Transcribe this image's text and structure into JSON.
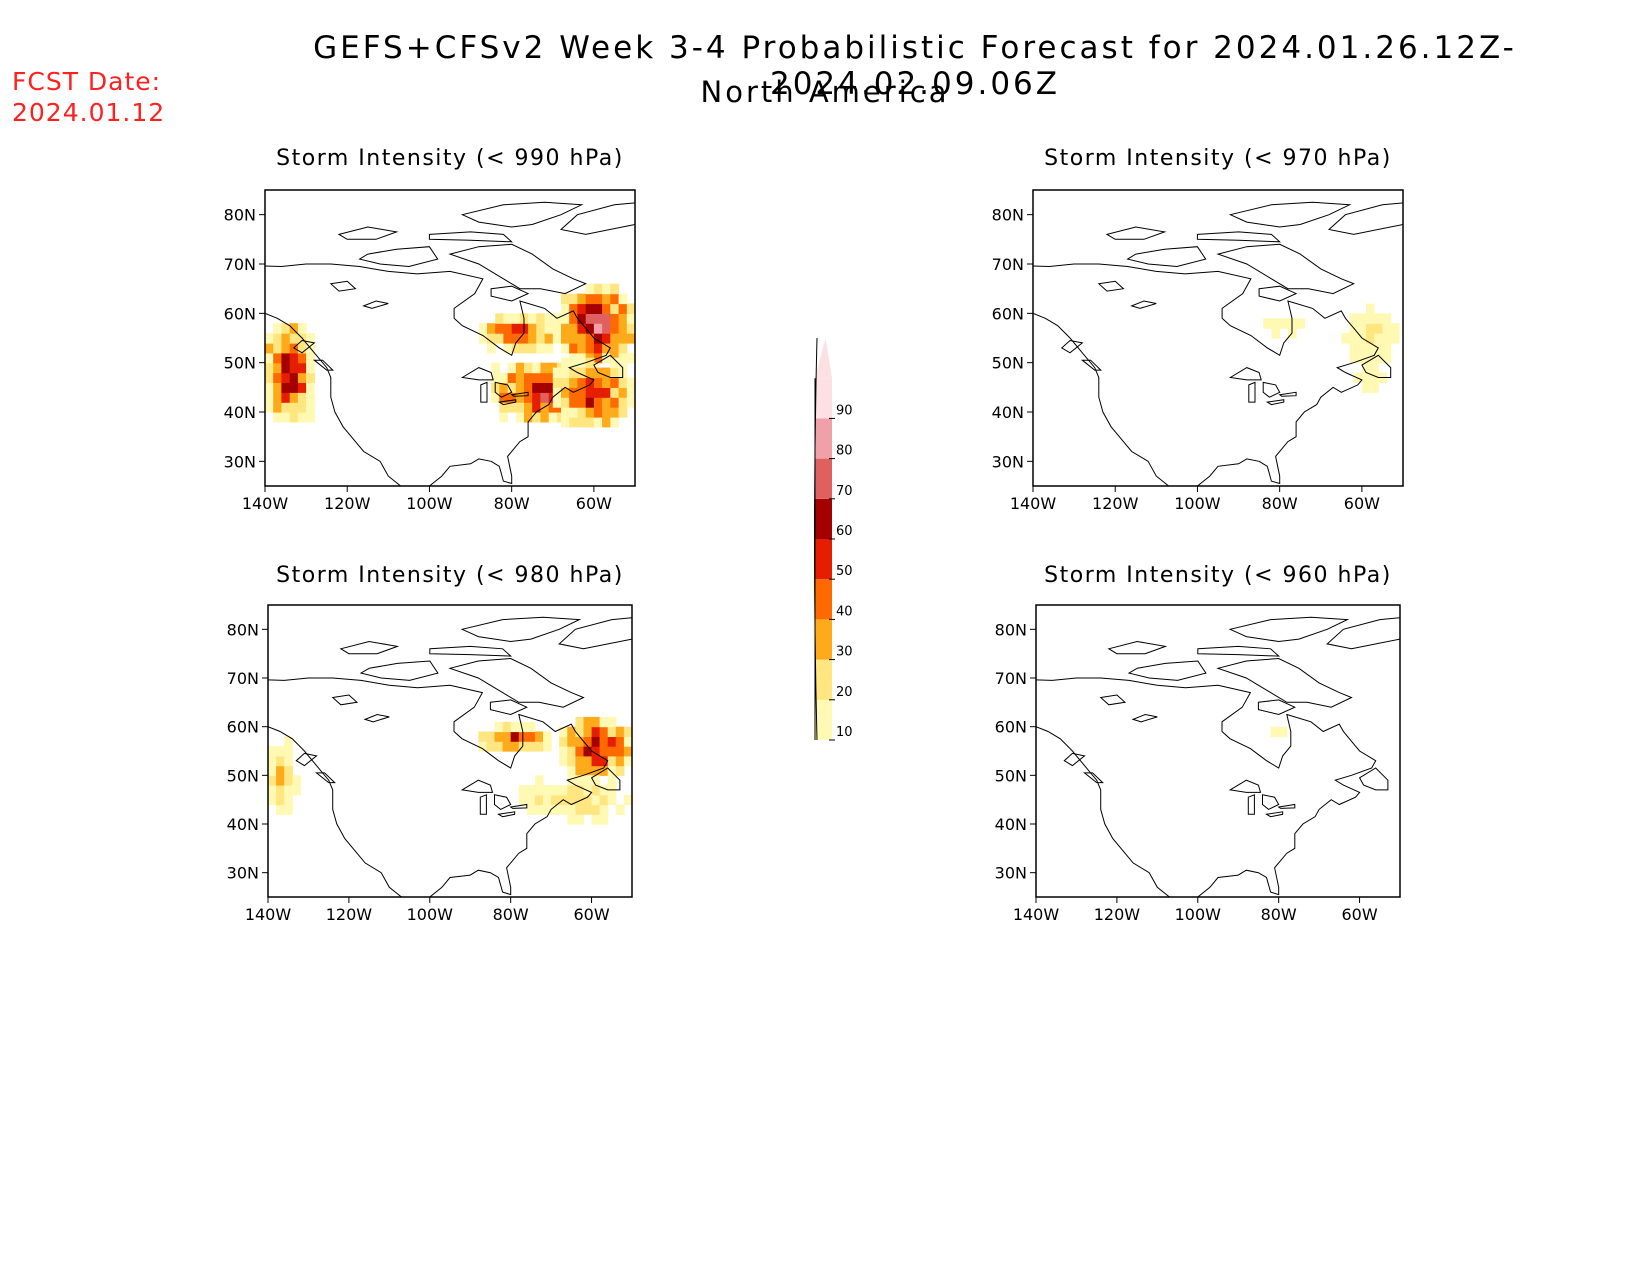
{
  "header": {
    "title": "GEFS+CFSv2 Week 3-4 Probabilistic Forecast for 2024.01.26.12Z-2024.02.09.06Z",
    "subtitle": "North America",
    "fcst_date_label": "FCST Date:",
    "fcst_date_value": "2024.01.12"
  },
  "map": {
    "lon_ticks": [
      "140W",
      "120W",
      "100W",
      "80W",
      "60W"
    ],
    "lat_ticks": [
      "80N",
      "70N",
      "60N",
      "50N",
      "40N",
      "30N"
    ],
    "lon_range": [
      -140,
      -50
    ],
    "lat_range": [
      25,
      85
    ]
  },
  "panels": [
    {
      "title": "Storm Intensity (< 990 hPa)",
      "areas": [
        {
          "name": "pacific-coast",
          "lon": [
            -140,
            -128
          ],
          "lat": [
            38,
            58
          ],
          "peak": 75
        },
        {
          "name": "hudson-bay-south",
          "lon": [
            -88,
            -68
          ],
          "lat": [
            52,
            60
          ],
          "peak": 60
        },
        {
          "name": "labrador",
          "lon": [
            -68,
            -50
          ],
          "lat": [
            50,
            65
          ],
          "peak": 85
        },
        {
          "name": "great-lakes-east",
          "lon": [
            -85,
            -60
          ],
          "lat": [
            38,
            50
          ],
          "peak": 75
        },
        {
          "name": "atlantic",
          "lon": [
            -70,
            -50
          ],
          "lat": [
            37,
            50
          ],
          "peak": 65
        }
      ]
    },
    {
      "title": "Storm Intensity (< 970 hPa)",
      "areas": [
        {
          "name": "hudson-bay-south",
          "lon": [
            -88,
            -72
          ],
          "lat": [
            55,
            60
          ],
          "peak": 20
        },
        {
          "name": "labrador",
          "lon": [
            -65,
            -50
          ],
          "lat": [
            48,
            62
          ],
          "peak": 25
        },
        {
          "name": "atlantic",
          "lon": [
            -64,
            -52
          ],
          "lat": [
            42,
            52
          ],
          "peak": 18
        }
      ]
    },
    {
      "title": "Storm Intensity (< 980 hPa)",
      "areas": [
        {
          "name": "pacific-coast",
          "lon": [
            -140,
            -133
          ],
          "lat": [
            42,
            58
          ],
          "peak": 35
        },
        {
          "name": "hudson-bay-south",
          "lon": [
            -88,
            -70
          ],
          "lat": [
            55,
            60
          ],
          "peak": 60
        },
        {
          "name": "labrador",
          "lon": [
            -68,
            -50
          ],
          "lat": [
            50,
            62
          ],
          "peak": 70
        },
        {
          "name": "maritimes",
          "lon": [
            -80,
            -50
          ],
          "lat": [
            40,
            50
          ],
          "peak": 30
        }
      ]
    },
    {
      "title": "Storm Intensity (< 960 hPa)",
      "areas": [
        {
          "name": "hudson-bay-south",
          "lon": [
            -84,
            -76
          ],
          "lat": [
            58,
            60
          ],
          "peak": 15
        },
        {
          "name": "labrador",
          "lon": [
            -64,
            -60
          ],
          "lat": [
            56,
            59
          ],
          "peak": 12
        }
      ]
    }
  ],
  "colorbar": {
    "levels": [
      10,
      20,
      30,
      40,
      50,
      60,
      70,
      80,
      90
    ],
    "labels": [
      "10",
      "20",
      "30",
      "40",
      "50",
      "60",
      "70",
      "80",
      "90"
    ],
    "colors": [
      "#fff9b3",
      "#ffe680",
      "#ffaa1a",
      "#ff6a00",
      "#e61e00",
      "#a50000",
      "#e06060",
      "#f0a0a8",
      "#fde0e4"
    ]
  }
}
